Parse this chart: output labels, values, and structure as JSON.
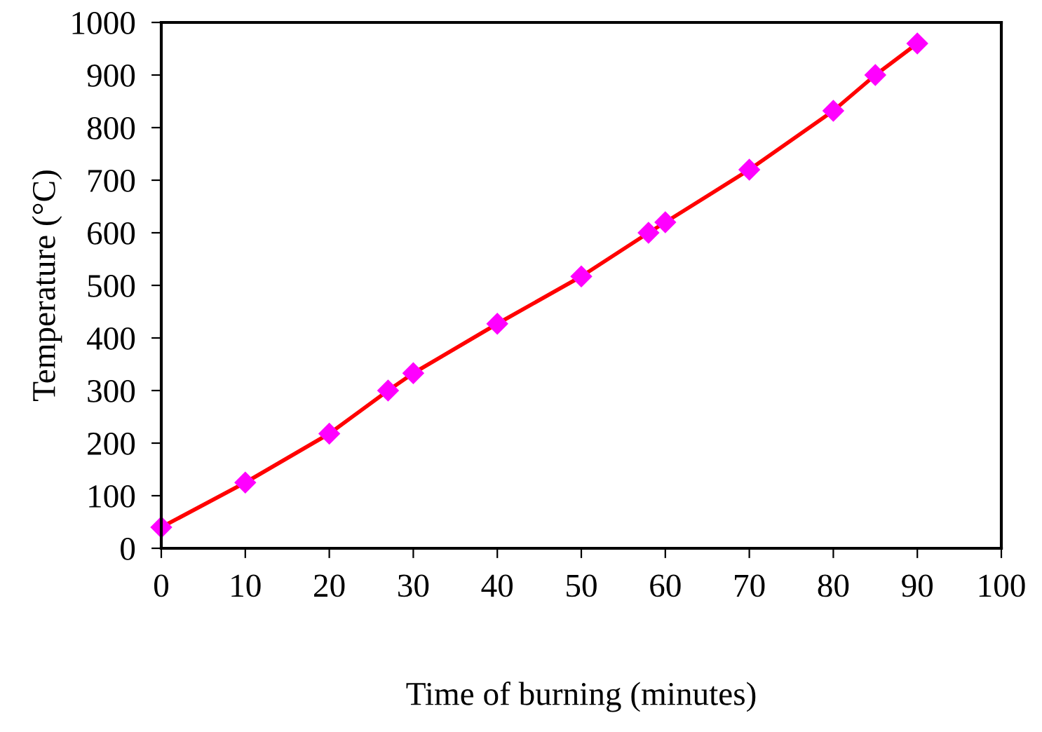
{
  "chart_data": {
    "type": "line",
    "xlabel": "Time of burning (minutes)",
    "ylabel": "Temperature (°C)",
    "x": [
      0,
      10,
      20,
      27,
      30,
      40,
      50,
      58,
      60,
      70,
      80,
      85,
      90
    ],
    "series": [
      {
        "color": "#ff0000",
        "colors": [
          "#ff00ff",
          "#ff00ff",
          "#ff00ff",
          "#ff00ff",
          "#ff00ff",
          "#ff00ff",
          "#ff00ff",
          "#ff00ff",
          "#ff00ff",
          "#ff00ff",
          "#ff00ff",
          "#ff00ff",
          "#ff00ff"
        ],
        "values": [
          40,
          125,
          218,
          300,
          333,
          427,
          517,
          600,
          620,
          720,
          832,
          900,
          960
        ]
      }
    ],
    "xlim": [
      0,
      100
    ],
    "xticks": [
      0,
      10,
      20,
      30,
      40,
      50,
      60,
      70,
      80,
      90,
      100
    ],
    "ylim": [
      0,
      1000
    ],
    "yticks": [
      0,
      100,
      200,
      300,
      400,
      500,
      600,
      700,
      800,
      900,
      1000
    ],
    "marker": "diamond",
    "line_style": "solid",
    "grid": false,
    "legend": false
  }
}
